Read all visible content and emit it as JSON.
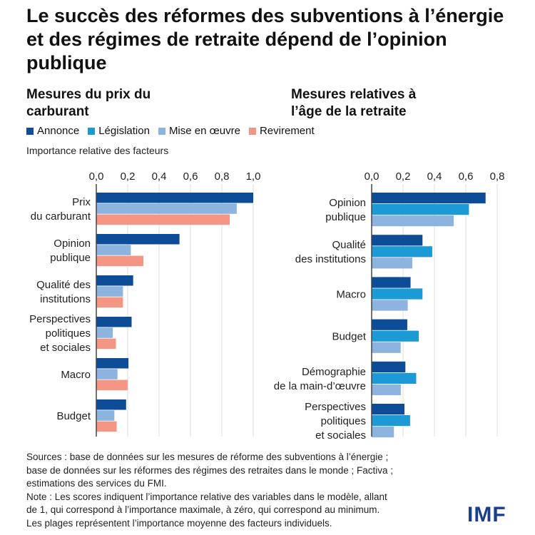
{
  "title": "Le succès des réformes des subventions à l’énergie et des régimes de retraite dépend de l’opinion publique",
  "legend": [
    {
      "label": "Annonce",
      "color": "#0d4c96"
    },
    {
      "label": "Législation",
      "color": "#1b9ad6"
    },
    {
      "label": "Mise en œuvre",
      "color": "#8db4df"
    },
    {
      "label": "Revirement",
      "color": "#f59684"
    }
  ],
  "ylabel": "Importance relative des facteurs",
  "chart_data": [
    {
      "type": "bar",
      "orientation": "horizontal",
      "title": "Mesures du prix du carburant",
      "xlim": [
        0,
        1.0
      ],
      "ticks": [
        "0,0",
        "0,2",
        "0,4",
        "0,6",
        "0,8",
        "1,0"
      ],
      "categories": [
        "Prix\ndu carburant",
        "Opinion\npublique",
        "Qualité des\ninstitutions",
        "Perspectives\npolitiques\net sociales",
        "Macro",
        "Budget"
      ],
      "series": [
        {
          "name": "Annonce",
          "values": [
            1.0,
            0.53,
            0.235,
            0.225,
            0.205,
            0.19
          ]
        },
        {
          "name": "Mise en œuvre",
          "values": [
            0.895,
            0.22,
            0.17,
            0.105,
            0.135,
            0.115
          ]
        },
        {
          "name": "Revirement",
          "values": [
            0.85,
            0.3,
            0.17,
            0.125,
            0.2,
            0.13
          ]
        }
      ]
    },
    {
      "type": "bar",
      "orientation": "horizontal",
      "title": "Mesures relatives à l’âge de la retraite",
      "xlim": [
        0,
        0.8
      ],
      "ticks": [
        "0,0",
        "0,2",
        "0,4",
        "0,6",
        "0,8"
      ],
      "categories": [
        "Opinion\npublique",
        "Qualité\ndes institutions",
        "Macro",
        "Budget",
        "Démographie\nde la main-d’œuvre",
        "Perspectives\npolitiques\net sociales"
      ],
      "series": [
        {
          "name": "Annonce",
          "values": [
            0.726,
            0.324,
            0.248,
            0.227,
            0.215,
            0.209
          ]
        },
        {
          "name": "Législation",
          "values": [
            0.62,
            0.386,
            0.324,
            0.3,
            0.284,
            0.245
          ]
        },
        {
          "name": "Mise en œuvre",
          "values": [
            0.523,
            0.259,
            0.23,
            0.185,
            0.186,
            0.142
          ]
        }
      ]
    }
  ],
  "sources": [
    "Sources : base de données sur les mesures de réforme des subventions à l’énergie ;",
    "base de données sur les réformes des régimes des retraites dans le monde ; Factiva ;",
    "estimations des services du FMI.",
    "Note : Les scores indiquent l’importance relative des variables dans le modèle, allant",
    "de 1, qui correspond à l’importance maximale, à zéro, qui correspond au minimum.",
    "Les plages représentent l’importance moyenne des facteurs individuels."
  ],
  "logo": "IMF"
}
